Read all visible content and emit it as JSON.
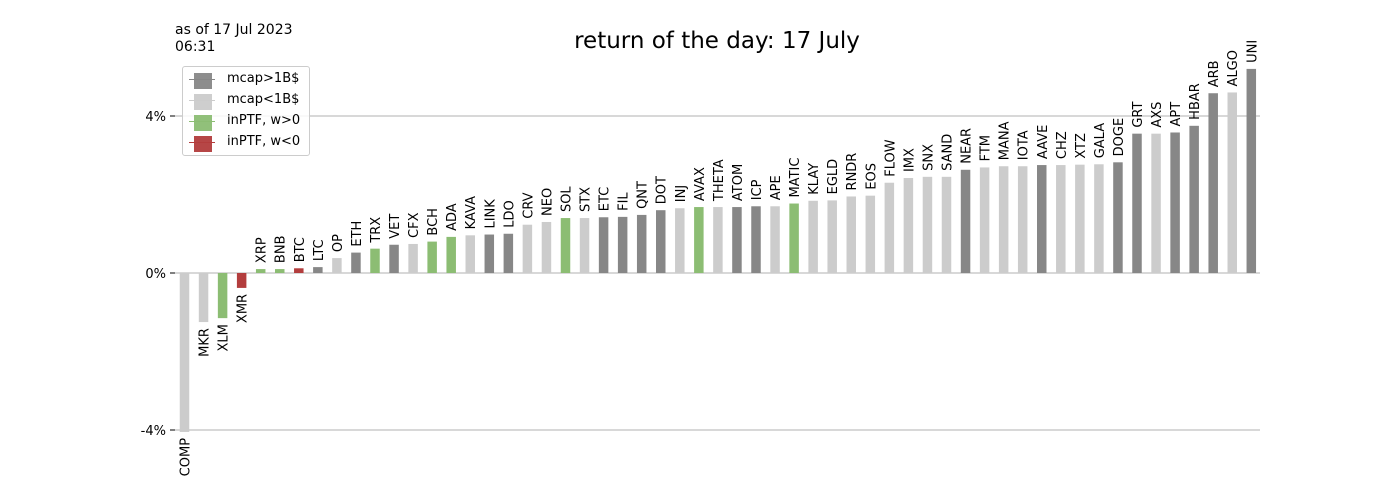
{
  "header": {
    "asof": "as of 17 Jul 2023\n06:31"
  },
  "colors": {
    "mcap_gt_1b": "#878787",
    "mcap_lt_1b": "#cccccc",
    "inptf_pos": "#8cbd73",
    "inptf_neg": "#b33d3d",
    "grid": "#b0b0b0"
  },
  "legend": {
    "items": [
      {
        "key": "mcap_gt_1b",
        "label": "mcap>1B$"
      },
      {
        "key": "mcap_lt_1b",
        "label": "mcap<1B$"
      },
      {
        "key": "inptf_pos",
        "label": "inPTF, w>0"
      },
      {
        "key": "inptf_neg",
        "label": "inPTF, w<0"
      }
    ]
  },
  "chart_data": {
    "type": "bar",
    "title": "return of the day: 17 July",
    "yticks": [
      -4,
      0,
      4
    ],
    "ytick_labels": [
      "-4%",
      "0%",
      "4%"
    ],
    "ylim": [
      -4.0,
      5.3
    ],
    "grid": "horizontal at ticks",
    "legend_placement": "top-left",
    "categories": [
      "COMP",
      "MKR",
      "XLM",
      "XMR",
      "XRP",
      "BNB",
      "BTC",
      "LTC",
      "OP",
      "ETH",
      "TRX",
      "VET",
      "CFX",
      "BCH",
      "ADA",
      "KAVA",
      "LINK",
      "LDO",
      "CRV",
      "NEO",
      "SOL",
      "STX",
      "ETC",
      "FIL",
      "QNT",
      "DOT",
      "INJ",
      "AVAX",
      "THETA",
      "ATOM",
      "ICP",
      "APE",
      "MATIC",
      "KLAY",
      "EGLD",
      "RNDR",
      "EOS",
      "FLOW",
      "IMX",
      "SNX",
      "SAND",
      "NEAR",
      "FTM",
      "MANA",
      "IOTA",
      "AAVE",
      "CHZ",
      "XTZ",
      "GALA",
      "DOGE",
      "GRT",
      "AXS",
      "APT",
      "HBAR",
      "ARB",
      "ALGO",
      "UNI"
    ],
    "values": [
      -4.05,
      -1.25,
      -1.15,
      -0.38,
      0.1,
      0.1,
      0.12,
      0.15,
      0.38,
      0.52,
      0.62,
      0.72,
      0.74,
      0.8,
      0.92,
      0.96,
      0.98,
      1.0,
      1.23,
      1.3,
      1.4,
      1.4,
      1.42,
      1.43,
      1.48,
      1.6,
      1.65,
      1.68,
      1.68,
      1.68,
      1.7,
      1.7,
      1.77,
      1.84,
      1.85,
      1.95,
      1.97,
      2.3,
      2.42,
      2.45,
      2.45,
      2.63,
      2.69,
      2.72,
      2.72,
      2.75,
      2.75,
      2.76,
      2.77,
      2.82,
      3.55,
      3.55,
      3.58,
      3.75,
      4.58,
      4.6,
      5.2
    ],
    "group": [
      "lt",
      "lt",
      "pos",
      "neg",
      "pos",
      "pos",
      "neg",
      "gt",
      "lt",
      "gt",
      "pos",
      "gt",
      "lt",
      "pos",
      "pos",
      "lt",
      "gt",
      "gt",
      "lt",
      "lt",
      "pos",
      "lt",
      "gt",
      "gt",
      "gt",
      "gt",
      "lt",
      "pos",
      "lt",
      "gt",
      "gt",
      "lt",
      "pos",
      "lt",
      "lt",
      "lt",
      "lt",
      "lt",
      "lt",
      "lt",
      "lt",
      "gt",
      "lt",
      "lt",
      "lt",
      "gt",
      "lt",
      "lt",
      "lt",
      "gt",
      "gt",
      "lt",
      "gt",
      "gt",
      "gt",
      "lt",
      "gt"
    ]
  }
}
